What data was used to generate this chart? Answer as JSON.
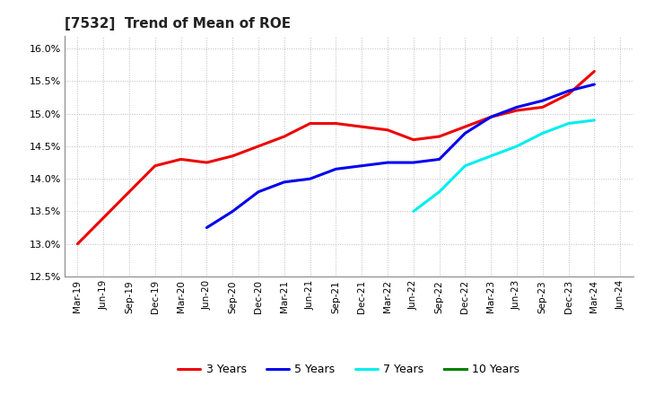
{
  "title": "[7532]  Trend of Mean of ROE",
  "ylim": [
    0.125,
    0.162
  ],
  "yticks": [
    0.125,
    0.13,
    0.135,
    0.14,
    0.145,
    0.15,
    0.155,
    0.16
  ],
  "ytick_labels": [
    "12.5%",
    "13.0%",
    "13.5%",
    "14.0%",
    "14.5%",
    "15.0%",
    "15.5%",
    "16.0%"
  ],
  "series": {
    "3 Years": {
      "color": "#EE0000",
      "x": [
        "Mar-19",
        "Jun-19",
        "Sep-19",
        "Dec-19",
        "Mar-20",
        "Jun-20",
        "Sep-20",
        "Dec-20",
        "Mar-21",
        "Jun-21",
        "Sep-21",
        "Dec-21",
        "Mar-22",
        "Jun-22",
        "Sep-22",
        "Dec-22",
        "Mar-23",
        "Jun-23",
        "Sep-23",
        "Dec-23",
        "Mar-24"
      ],
      "y": [
        0.13,
        0.134,
        0.138,
        0.142,
        0.143,
        0.1425,
        0.1435,
        0.145,
        0.1465,
        0.1485,
        0.1485,
        0.148,
        0.1475,
        0.146,
        0.1465,
        0.148,
        0.1495,
        0.1505,
        0.151,
        0.153,
        0.1565
      ]
    },
    "5 Years": {
      "color": "#0000EE",
      "x": [
        "Jun-20",
        "Sep-20",
        "Dec-20",
        "Mar-21",
        "Jun-21",
        "Sep-21",
        "Dec-21",
        "Mar-22",
        "Jun-22",
        "Sep-22",
        "Dec-22",
        "Mar-23",
        "Jun-23",
        "Sep-23",
        "Dec-23",
        "Mar-24"
      ],
      "y": [
        0.1325,
        0.135,
        0.138,
        0.1395,
        0.14,
        0.1415,
        0.142,
        0.1425,
        0.1425,
        0.143,
        0.147,
        0.1495,
        0.151,
        0.152,
        0.1535,
        0.1545
      ]
    },
    "7 Years": {
      "color": "#00EEEE",
      "x": [
        "Jun-22",
        "Sep-22",
        "Dec-22",
        "Mar-23",
        "Jun-23",
        "Sep-23",
        "Dec-23",
        "Mar-24"
      ],
      "y": [
        0.135,
        0.138,
        0.142,
        0.1435,
        0.145,
        0.147,
        0.1485,
        0.149
      ]
    },
    "10 Years": {
      "color": "#008000",
      "x": [],
      "y": []
    }
  },
  "xtick_labels": [
    "Mar-19",
    "Jun-19",
    "Sep-19",
    "Dec-19",
    "Mar-20",
    "Jun-20",
    "Sep-20",
    "Dec-20",
    "Mar-21",
    "Jun-21",
    "Sep-21",
    "Dec-21",
    "Mar-22",
    "Jun-22",
    "Sep-22",
    "Dec-22",
    "Mar-23",
    "Jun-23",
    "Sep-23",
    "Dec-23",
    "Mar-24",
    "Jun-24"
  ],
  "legend_order": [
    "3 Years",
    "5 Years",
    "7 Years",
    "10 Years"
  ],
  "background_color": "#FFFFFF",
  "grid_color": "#BBBBBB",
  "title_fontsize": 11,
  "axis_label_fontsize": 7.5,
  "ytick_fontsize": 8,
  "line_width": 2.2
}
